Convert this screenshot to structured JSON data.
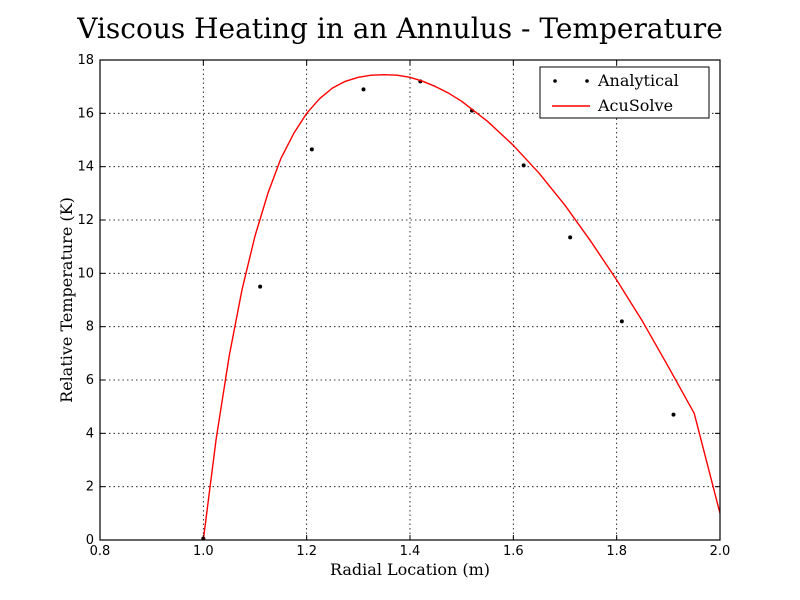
{
  "chart_data": {
    "type": "line",
    "title": "Viscous Heating in an Annulus - Temperature",
    "xlabel": "Radial Location (m)",
    "ylabel": "Relative Temperature (K)",
    "xlim": [
      0.8,
      2.0
    ],
    "ylim": [
      0,
      18
    ],
    "xticks": [
      0.8,
      1.0,
      1.2,
      1.4,
      1.6,
      1.8,
      2.0
    ],
    "xtick_labels": [
      "0.8",
      "1.0",
      "1.2",
      "1.4",
      "1.6",
      "1.8",
      "2.0"
    ],
    "yticks": [
      0,
      2,
      4,
      6,
      8,
      10,
      12,
      14,
      16,
      18
    ],
    "ytick_labels": [
      "0",
      "2",
      "4",
      "6",
      "8",
      "10",
      "12",
      "14",
      "16",
      "18"
    ],
    "grid": true,
    "legend_position": "top-right",
    "series": [
      {
        "name": "Analytical",
        "style": "scatter",
        "color": "#000000",
        "x": [
          1.0,
          1.11,
          1.21,
          1.31,
          1.42,
          1.52,
          1.62,
          1.71,
          1.81,
          1.91
        ],
        "y": [
          0.05,
          9.5,
          14.65,
          16.9,
          17.2,
          16.1,
          14.05,
          11.35,
          8.2,
          4.7
        ]
      },
      {
        "name": "AcuSolve",
        "style": "line",
        "color": "#ff0000",
        "x": [
          1.0,
          1.025,
          1.05,
          1.075,
          1.1,
          1.125,
          1.15,
          1.175,
          1.2,
          1.225,
          1.25,
          1.275,
          1.3,
          1.325,
          1.35,
          1.375,
          1.4,
          1.425,
          1.45,
          1.475,
          1.5,
          1.55,
          1.6,
          1.65,
          1.7,
          1.75,
          1.8,
          1.85,
          1.9,
          1.95,
          2.0
        ],
        "y": [
          0.0,
          3.8,
          6.9,
          9.4,
          11.4,
          13.0,
          14.3,
          15.25,
          16.0,
          16.55,
          16.95,
          17.2,
          17.35,
          17.43,
          17.45,
          17.43,
          17.35,
          17.2,
          17.0,
          16.75,
          16.45,
          15.7,
          14.8,
          13.75,
          12.55,
          11.2,
          9.75,
          8.2,
          6.5,
          4.75,
          1.0
        ]
      }
    ]
  }
}
